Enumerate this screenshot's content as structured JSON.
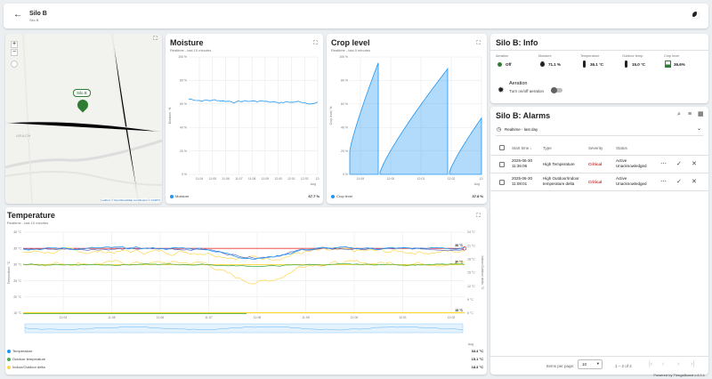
{
  "header": {
    "title": "Silo B",
    "subtitle": "Silo B"
  },
  "map": {
    "marker_label": "Silo B",
    "place_label": "URACH",
    "attribution": "Leaflet | © OpenStreetMap contributors © CARTO"
  },
  "moisture": {
    "title": "Moisture",
    "subtitle": "Realtime - last 10 minutes",
    "y_label": "Moisture, %",
    "y_ticks": [
      "100 %",
      "80 %",
      "60 %",
      "40 %",
      "20 %",
      "0 %"
    ],
    "x_ticks": [
      "11:04",
      "11:05",
      "11:06",
      "11:07",
      "11:08",
      "11:09",
      "12:00",
      "12:01",
      "12:02",
      "12:"
    ],
    "x_extra": "Aug",
    "legend": "Moisture",
    "legend_color": "#2196f3",
    "value": "67.7 %"
  },
  "crop": {
    "title": "Crop level",
    "subtitle": "Realtime - last 5 minutes",
    "y_label": "Crop level, %",
    "y_ticks": [
      "100 %",
      "80 %",
      "60 %",
      "40 %",
      "20 %",
      "0 %"
    ],
    "x_ticks": [
      "11:09",
      "12:00",
      "12:01",
      "12:02",
      "12:"
    ],
    "x_extra": "Aug",
    "legend": "Crop level",
    "legend_color": "#2196f3",
    "value": "37.8 %"
  },
  "temperature": {
    "title": "Temperature",
    "subtitle": "Realtime - last 10 minutes",
    "y_label": "Temperature, °C",
    "y2_label": "Indoor/Outdoor delta, °C",
    "y_ticks": [
      "40 °C",
      "35 °C",
      "30 °C",
      "25 °C",
      "20 °C",
      "15 °C"
    ],
    "y2_ticks": [
      "24 °C",
      "21 °C",
      "18 °C",
      "15 °C",
      "12 °C",
      "9 °C",
      "6 °C"
    ],
    "x_ticks": [
      "11:04",
      "11:05",
      "11:06",
      "11:07",
      "11:08",
      "11:09",
      "12:00",
      "12:01",
      "12:02"
    ],
    "x_extra": "Aug",
    "markers": [
      "35 °C",
      "30 °C",
      "15 °C"
    ],
    "legend": [
      {
        "name": "Temperature",
        "color": "#2196f3",
        "value": "33.4 °C"
      },
      {
        "name": "Outdoor temperature",
        "color": "#4caf50",
        "value": "15.1 °C"
      },
      {
        "name": "Indoor/Outdoor delta",
        "color": "#ffd54f",
        "value": "18.3 °C"
      }
    ]
  },
  "info": {
    "title": "Silo B: Info",
    "fields": [
      {
        "label": "Aeration",
        "value": "Off",
        "icon": "status-dot-icon"
      },
      {
        "label": "Moisture",
        "value": "71.1 %",
        "icon": "water-drop-icon"
      },
      {
        "label": "Temperature",
        "value": "36.1 °C",
        "icon": "thermometer-icon"
      },
      {
        "label": "Outdoor temp.",
        "value": "15.0 °C",
        "icon": "thermometer-icon"
      },
      {
        "label": "Crop level",
        "value": "36.6%",
        "icon": "battery-icon"
      }
    ],
    "aeration_title": "Aeration",
    "aeration_toggle_label": "Turn on/off aeration"
  },
  "alarms": {
    "title": "Silo B: Alarms",
    "filter": "Realtime - last day",
    "columns": [
      "Start time",
      "Type",
      "Severity",
      "Status"
    ],
    "rows": [
      {
        "time": "2025-06-30 11:36:06",
        "type": "High Temperature",
        "severity": "Critical",
        "status": "Active Unacknowledged"
      },
      {
        "time": "2025-06-30 11:08:01",
        "type": "High Outdoor/Indoor temperature delta",
        "severity": "Critical",
        "status": "Active Unacknowledged"
      }
    ],
    "items_per_page_label": "Items per page:",
    "items_per_page": "10",
    "range": "1 – 2 of 2"
  },
  "footer": {
    "powered": "Powered by ThingsBoard v.4.0.1"
  }
}
